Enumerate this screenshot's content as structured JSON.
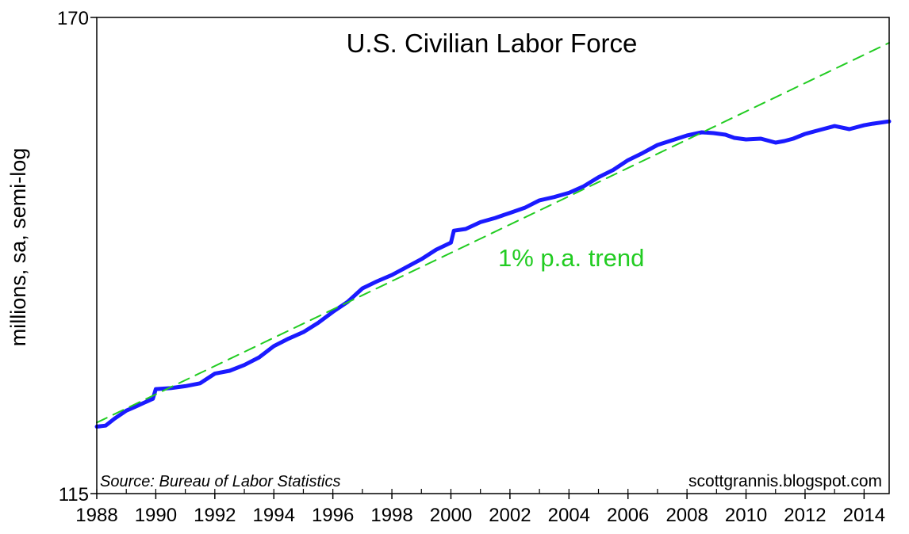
{
  "chart_data": {
    "type": "line",
    "title": "U.S. Civilian Labor Force",
    "ylabel": "millions, sa, semi-log",
    "xlabel": "",
    "y_scale": "log",
    "ylim": [
      115,
      170
    ],
    "xlim": [
      1988.0,
      2014.85
    ],
    "y_ticks": [
      "170",
      "115"
    ],
    "x_ticks": [
      "1988",
      "1990",
      "1992",
      "1994",
      "1996",
      "1998",
      "2000",
      "2002",
      "2004",
      "2006",
      "2008",
      "2010",
      "2012",
      "2014"
    ],
    "annotation": "1% p.a. trend",
    "source": "Source:  Bureau of Labor Statistics",
    "credit": "scottgrannis.blogspot.com",
    "grid": false,
    "colors": {
      "series": "#1a1aff",
      "trend": "#22cc22",
      "axis": "#000000"
    },
    "series": [
      {
        "style": "solid",
        "x": [
          1988.0,
          1988.3,
          1988.6,
          1989.0,
          1989.3,
          1989.6,
          1989.9,
          1990.0,
          1990.5,
          1991.0,
          1991.5,
          1992.0,
          1992.5,
          1993.0,
          1993.5,
          1994.0,
          1994.5,
          1995.0,
          1995.5,
          1996.0,
          1996.5,
          1997.0,
          1997.5,
          1998.0,
          1998.5,
          1999.0,
          1999.5,
          2000.0,
          2000.1,
          2000.5,
          2001.0,
          2001.5,
          2002.0,
          2002.5,
          2003.0,
          2003.5,
          2004.0,
          2004.5,
          2005.0,
          2005.5,
          2006.0,
          2006.5,
          2007.0,
          2007.5,
          2008.0,
          2008.5,
          2008.9,
          2009.3,
          2009.6,
          2010.0,
          2010.5,
          2011.0,
          2011.3,
          2011.6,
          2012.0,
          2012.5,
          2013.0,
          2013.5,
          2014.0,
          2014.3,
          2014.85
        ],
        "values": [
          121.5,
          121.6,
          122.3,
          123.1,
          123.5,
          123.9,
          124.3,
          125.3,
          125.4,
          125.6,
          125.9,
          126.9,
          127.2,
          127.8,
          128.6,
          129.8,
          130.6,
          131.3,
          132.3,
          133.5,
          134.6,
          136.1,
          136.9,
          137.6,
          138.5,
          139.4,
          140.5,
          141.3,
          142.7,
          142.9,
          143.7,
          144.2,
          144.8,
          145.4,
          146.3,
          146.7,
          147.2,
          148.0,
          149.1,
          150.0,
          151.2,
          152.1,
          153.1,
          153.7,
          154.3,
          154.7,
          154.6,
          154.4,
          154.0,
          153.8,
          153.9,
          153.4,
          153.6,
          153.9,
          154.5,
          155.0,
          155.5,
          155.1,
          155.6,
          155.8,
          156.1
        ]
      },
      {
        "name": "1% p.a. trend",
        "style": "dashed",
        "x": [
          1988.0,
          2014.85
        ],
        "values": [
          121.9,
          166.5
        ]
      }
    ]
  }
}
